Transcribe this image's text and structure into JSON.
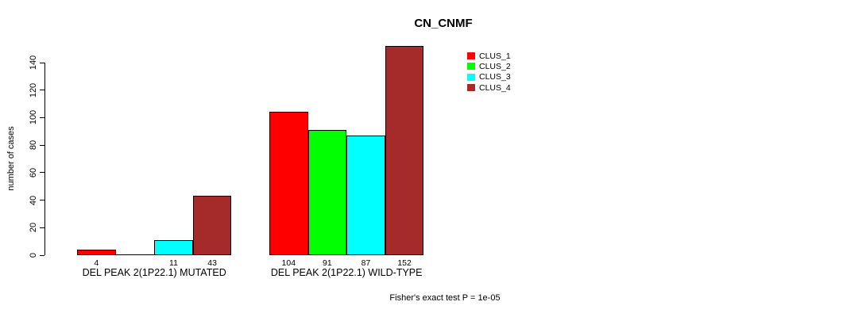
{
  "title": "CN_CNMF",
  "footer": "Fisher's exact test P = 1e-05",
  "colors": {
    "clus_1": "#FF0000",
    "clus_2": "#00FF00",
    "clus_3": "#00FFFF",
    "clus_4": "#A52A2A",
    "axis": "#000000",
    "background": "#FFFFFF"
  },
  "chart_data": {
    "type": "bar",
    "title": "CN_CNMF",
    "xlabel": "",
    "ylabel": "number of cases",
    "ylim": [
      0,
      140
    ],
    "y_ticks": [
      0,
      20,
      40,
      60,
      80,
      100,
      120,
      140
    ],
    "grid": false,
    "legend_position": "top-right-inside",
    "categories": [
      "DEL PEAK 2(1P22.1) MUTATED",
      "DEL PEAK 2(1P22.1) WILD-TYPE"
    ],
    "series": [
      {
        "name": "CLUS_1",
        "color": "#FF0000",
        "values": [
          4,
          104
        ]
      },
      {
        "name": "CLUS_2",
        "color": "#00FF00",
        "values": [
          0,
          91
        ]
      },
      {
        "name": "CLUS_3",
        "color": "#00FFFF",
        "values": [
          11,
          87
        ]
      },
      {
        "name": "CLUS_4",
        "color": "#A52A2A",
        "values": [
          43,
          152
        ]
      }
    ],
    "bar_value_labels": [
      [
        "4",
        "",
        "11",
        "43"
      ],
      [
        "104",
        "91",
        "87",
        "152"
      ]
    ],
    "annotation": "Fisher's exact test P = 1e-05"
  }
}
